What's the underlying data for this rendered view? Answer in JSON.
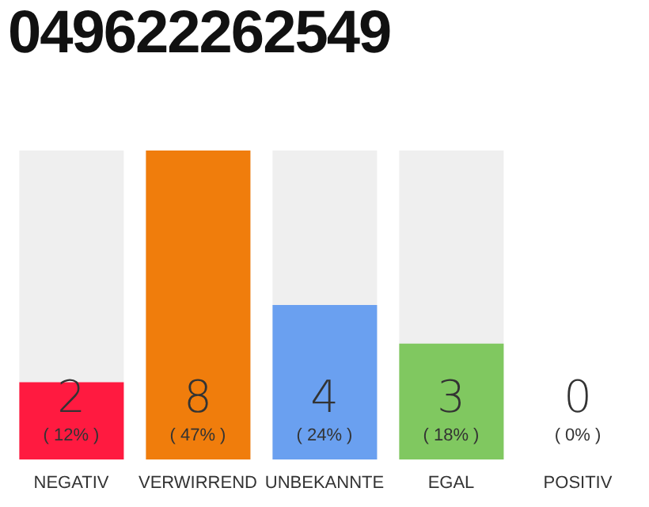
{
  "chart_data": {
    "type": "bar",
    "title": "049622262549",
    "categories": [
      "NEGATIV",
      "VERWIRREND",
      "UNBEKANNTE",
      "EGAL",
      "POSITIV"
    ],
    "values": [
      2,
      8,
      4,
      3,
      0
    ],
    "colors": [
      "#ff1a40",
      "#f07d0c",
      "#6aa0f0",
      "#80c860",
      "#e0e0e0"
    ],
    "value_labels": [
      "2\n( 12% )",
      "8\n( 47% )",
      "4\n( 24% )",
      "3\n( 18% )",
      "0\n( 0% )"
    ],
    "grid": false,
    "legend": false
  }
}
